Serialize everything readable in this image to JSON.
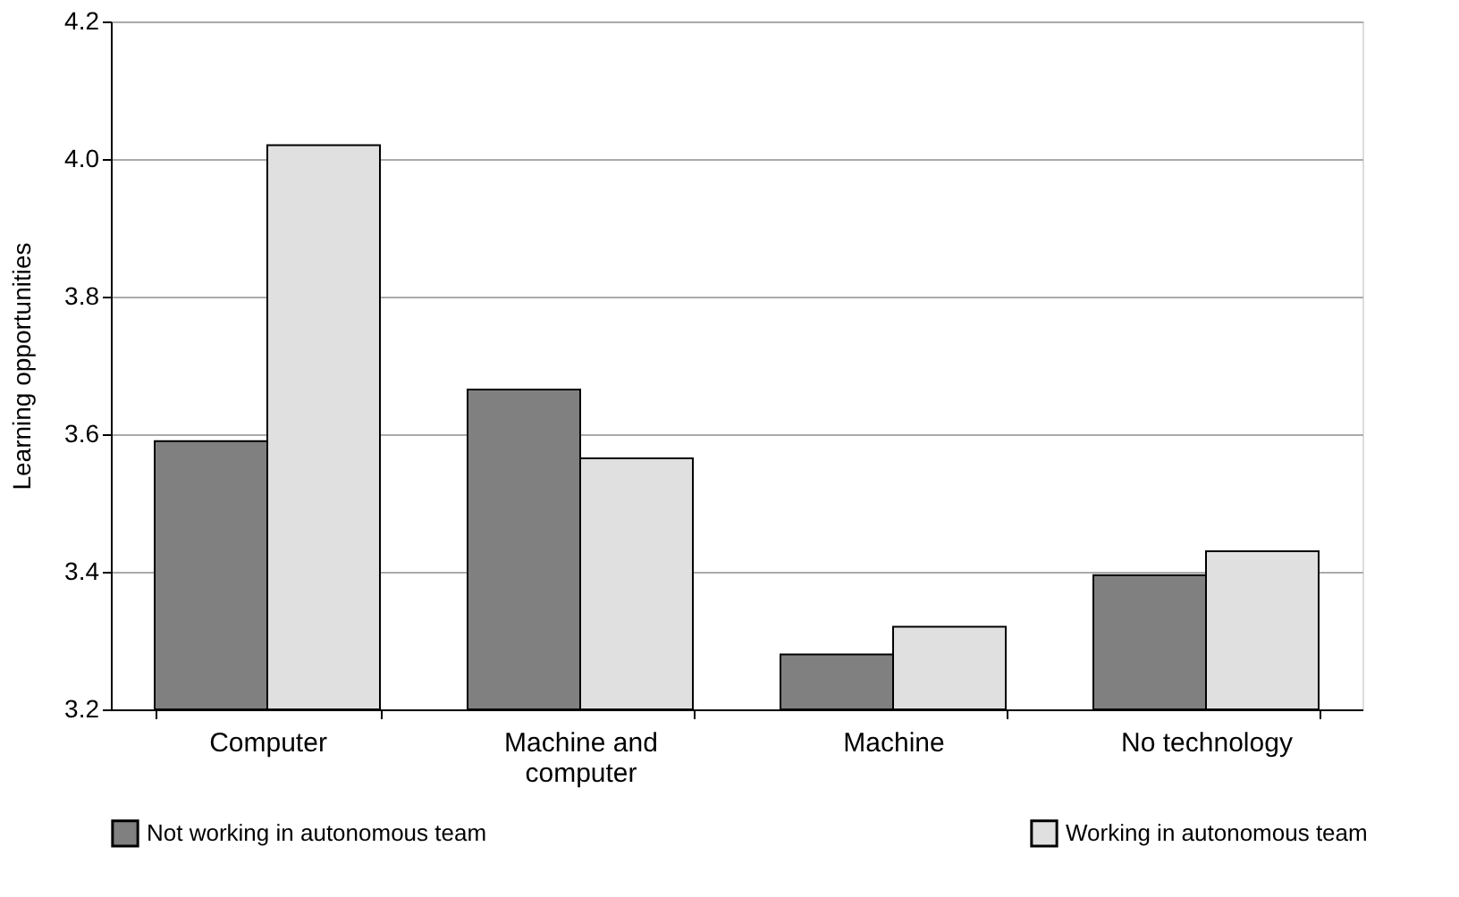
{
  "chart_data": {
    "type": "bar",
    "ylabel": "Learning opportunities",
    "categories": [
      "Computer",
      "Machine and computer",
      "Machine",
      "No technology"
    ],
    "series": [
      {
        "name": "Not working in autonomous team",
        "color": "#808080",
        "values": [
          3.59,
          3.665,
          3.28,
          3.395
        ]
      },
      {
        "name": "Working in autonomous team",
        "color": "#e0e0e0",
        "values": [
          4.02,
          3.565,
          3.32,
          3.43
        ]
      }
    ],
    "ylim": [
      3.2,
      4.2
    ],
    "yticks": [
      3.2,
      3.4,
      3.6,
      3.8,
      {
        "value": 4,
        "label": "4.0"
      },
      4.2
    ],
    "grid": "y",
    "legend": "bottom"
  }
}
